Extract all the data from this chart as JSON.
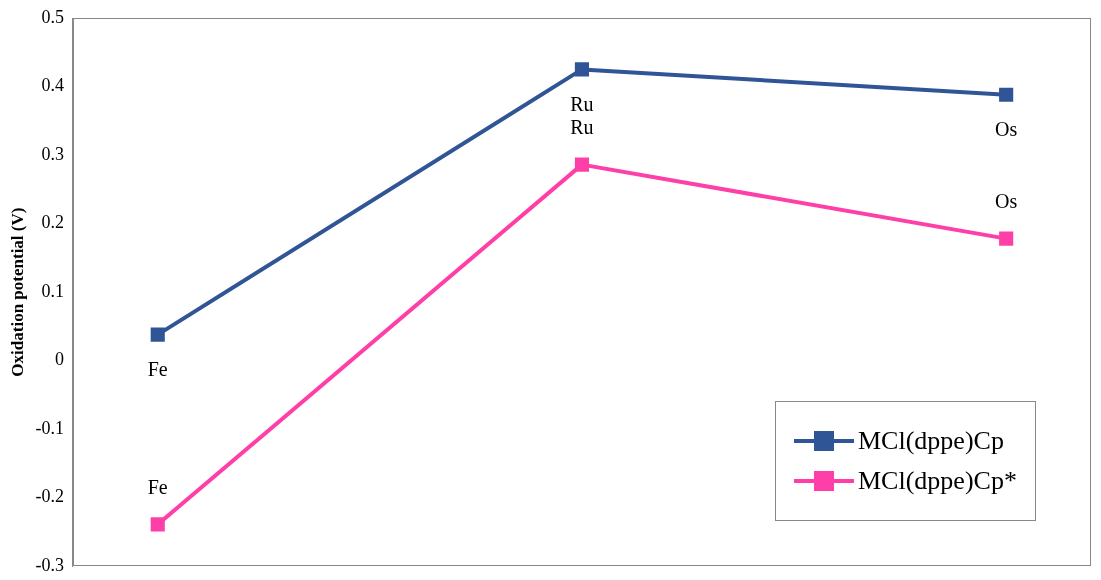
{
  "chart_data": {
    "type": "line",
    "ylabel": "Oxidation potential (V)",
    "categories": [
      null,
      null,
      null
    ],
    "series": [
      {
        "name": "MCl(dppe)Cp",
        "color": "#2f5597",
        "values": [
          0.038,
          0.425,
          0.388
        ]
      },
      {
        "name": "MCl(dppe)Cp*",
        "color": "#ff3fa8",
        "values": [
          -0.239,
          0.286,
          0.178
        ]
      }
    ],
    "annotations": [
      "Fe",
      "Ru",
      "Os",
      "Fe",
      "Ru",
      "Os"
    ],
    "ylim": [
      -0.3,
      0.5
    ],
    "yticks": [
      -0.3,
      -0.2,
      -0.1,
      0,
      0.1,
      0.2,
      0.3,
      0.4,
      0.5
    ],
    "grid": false,
    "legend": "bottom right",
    "marker": "square",
    "line_style": "solid",
    "tick_labels": "y"
  }
}
